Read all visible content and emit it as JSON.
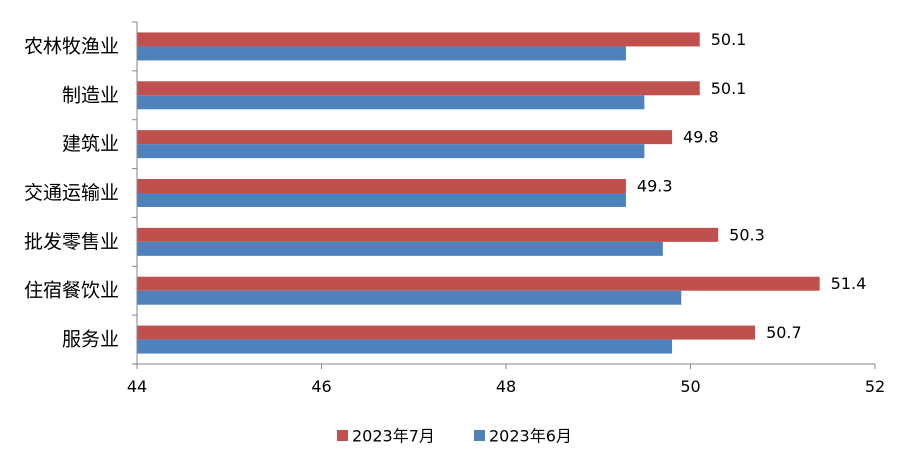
{
  "chart_data": {
    "type": "bar",
    "orientation": "horizontal",
    "categories": [
      "农林牧渔业",
      "制造业",
      "建筑业",
      "交通运输业",
      "批发零售业",
      "住宿餐饮业",
      "服务业"
    ],
    "series": [
      {
        "name": "2023年7月",
        "color": "#c0504d",
        "values": [
          50.1,
          50.1,
          49.8,
          49.3,
          50.3,
          51.4,
          50.7
        ],
        "show_labels": true
      },
      {
        "name": "2023年6月",
        "color": "#4f81bd",
        "values": [
          49.3,
          49.5,
          49.5,
          49.3,
          49.7,
          49.9,
          49.8
        ],
        "show_labels": false
      }
    ],
    "xlim": [
      44,
      52
    ],
    "xticks": [
      "44",
      "46",
      "48",
      "50",
      "52"
    ],
    "legend": "bottom",
    "grid": false
  }
}
